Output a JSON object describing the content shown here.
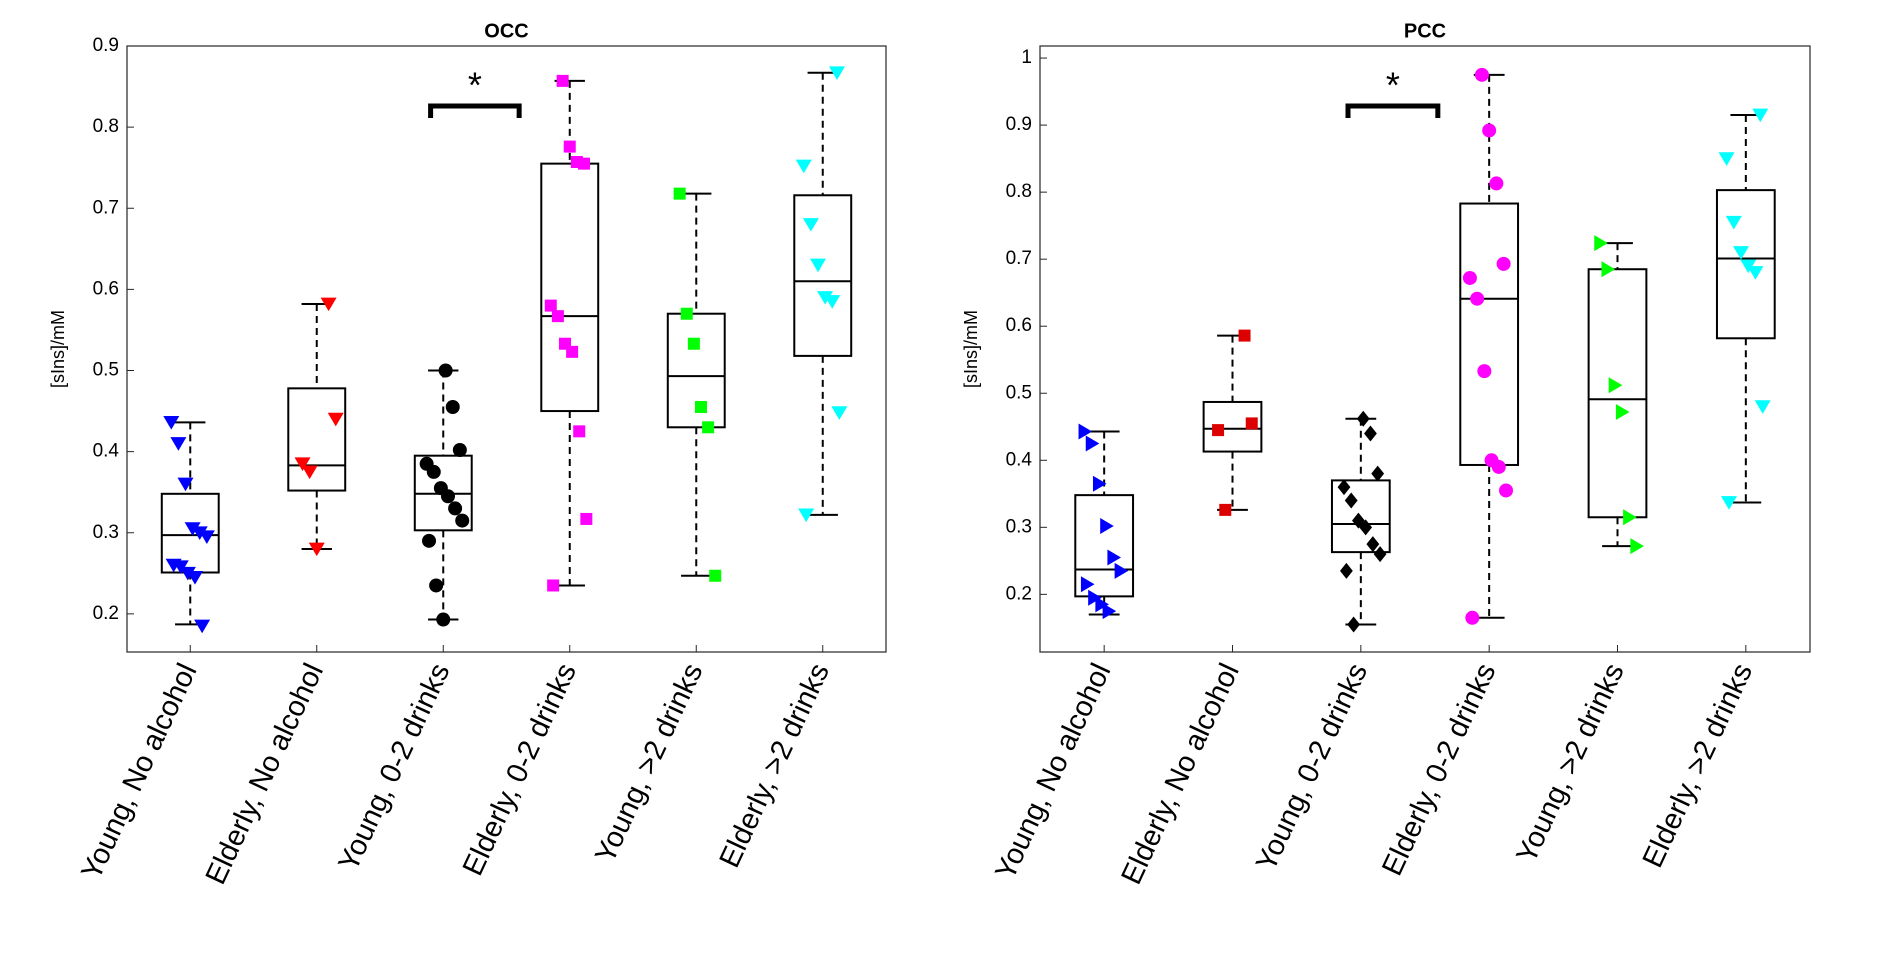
{
  "chart_data": [
    {
      "type": "box",
      "title": "OCC",
      "y_label": "[sIns]/mM",
      "annotation": "*",
      "ylim": [
        0.153,
        0.9
      ],
      "yticks": [
        0.2,
        0.3,
        0.4,
        0.5,
        0.6,
        0.7,
        0.8,
        0.9
      ],
      "categories": [
        "Young, No alcohol",
        "Elderly, No alcohol",
        "Young, 0-2 drinks",
        "Elderly, 0-2 drinks",
        "Young, >2 drinks",
        "Elderly, >2 drinks"
      ],
      "boxes": [
        {
          "color": "#0000ff",
          "marker": "triangle-down",
          "whisker_low": 0.187,
          "q1": 0.251,
          "median": 0.297,
          "q3": 0.348,
          "whisker_high": 0.436,
          "points": [
            0.436,
            0.41,
            0.36,
            0.305,
            0.3,
            0.295,
            0.26,
            0.258,
            0.25,
            0.245,
            0.185
          ]
        },
        {
          "color": "#ff0000",
          "marker": "triangle-down",
          "whisker_low": 0.28,
          "q1": 0.352,
          "median": 0.383,
          "q3": 0.478,
          "whisker_high": 0.582,
          "points": [
            0.582,
            0.44,
            0.385,
            0.375,
            0.28
          ]
        },
        {
          "color": "#000000",
          "marker": "circle",
          "whisker_low": 0.193,
          "q1": 0.303,
          "median": 0.348,
          "q3": 0.395,
          "whisker_high": 0.5,
          "points": [
            0.5,
            0.455,
            0.402,
            0.385,
            0.375,
            0.355,
            0.345,
            0.33,
            0.315,
            0.29,
            0.235,
            0.193
          ]
        },
        {
          "color": "#ff00ff",
          "marker": "square",
          "whisker_low": 0.235,
          "q1": 0.45,
          "median": 0.567,
          "q3": 0.755,
          "whisker_high": 0.857,
          "points": [
            0.857,
            0.776,
            0.757,
            0.755,
            0.58,
            0.567,
            0.533,
            0.523,
            0.425,
            0.317,
            0.235
          ]
        },
        {
          "color": "#00ff00",
          "marker": "square",
          "whisker_low": 0.247,
          "q1": 0.43,
          "median": 0.493,
          "q3": 0.57,
          "whisker_high": 0.718,
          "points": [
            0.718,
            0.57,
            0.533,
            0.455,
            0.43,
            0.247
          ]
        },
        {
          "color": "#00ffff",
          "marker": "triangle-down",
          "whisker_low": 0.322,
          "q1": 0.518,
          "median": 0.61,
          "q3": 0.716,
          "whisker_high": 0.867,
          "points": [
            0.867,
            0.752,
            0.68,
            0.63,
            0.59,
            0.585,
            0.448,
            0.322
          ]
        }
      ]
    },
    {
      "type": "box",
      "title": "PCC",
      "y_label": "[sIns]/mM",
      "annotation": "*",
      "ylim": [
        0.114,
        1.018
      ],
      "yticks": [
        0.2,
        0.3,
        0.4,
        0.5,
        0.6,
        0.7,
        0.8,
        0.9,
        1
      ],
      "categories": [
        "Young, No alcohol",
        "Elderly, No alcohol",
        "Young, 0-2 drinks",
        "Elderly, 0-2 drinks",
        "Young, >2 drinks",
        "Elderly, >2 drinks"
      ],
      "boxes": [
        {
          "color": "#0000ff",
          "marker": "triangle-right",
          "whisker_low": 0.17,
          "q1": 0.197,
          "median": 0.237,
          "q3": 0.348,
          "whisker_high": 0.443,
          "points": [
            0.443,
            0.425,
            0.365,
            0.302,
            0.255,
            0.235,
            0.215,
            0.195,
            0.185,
            0.175
          ]
        },
        {
          "color": "#dd0000",
          "marker": "square",
          "whisker_low": 0.326,
          "q1": 0.413,
          "median": 0.447,
          "q3": 0.487,
          "whisker_high": 0.586,
          "points": [
            0.586,
            0.455,
            0.445,
            0.326
          ]
        },
        {
          "color": "#000000",
          "marker": "diamond",
          "whisker_low": 0.155,
          "q1": 0.263,
          "median": 0.305,
          "q3": 0.37,
          "whisker_high": 0.462,
          "points": [
            0.462,
            0.44,
            0.38,
            0.36,
            0.34,
            0.31,
            0.3,
            0.275,
            0.26,
            0.235,
            0.155
          ]
        },
        {
          "color": "#ff00ff",
          "marker": "circle",
          "whisker_low": 0.165,
          "q1": 0.393,
          "median": 0.641,
          "q3": 0.783,
          "whisker_high": 0.975,
          "points": [
            0.975,
            0.892,
            0.813,
            0.693,
            0.672,
            0.641,
            0.533,
            0.4,
            0.39,
            0.355,
            0.165
          ]
        },
        {
          "color": "#00ff00",
          "marker": "triangle-right",
          "whisker_low": 0.272,
          "q1": 0.315,
          "median": 0.491,
          "q3": 0.685,
          "whisker_high": 0.724,
          "points": [
            0.724,
            0.685,
            0.512,
            0.472,
            0.315,
            0.272
          ]
        },
        {
          "color": "#00ffff",
          "marker": "triangle-down",
          "whisker_low": 0.337,
          "q1": 0.582,
          "median": 0.701,
          "q3": 0.803,
          "whisker_high": 0.915,
          "points": [
            0.915,
            0.85,
            0.755,
            0.71,
            0.69,
            0.68,
            0.48,
            0.337
          ]
        }
      ]
    }
  ]
}
